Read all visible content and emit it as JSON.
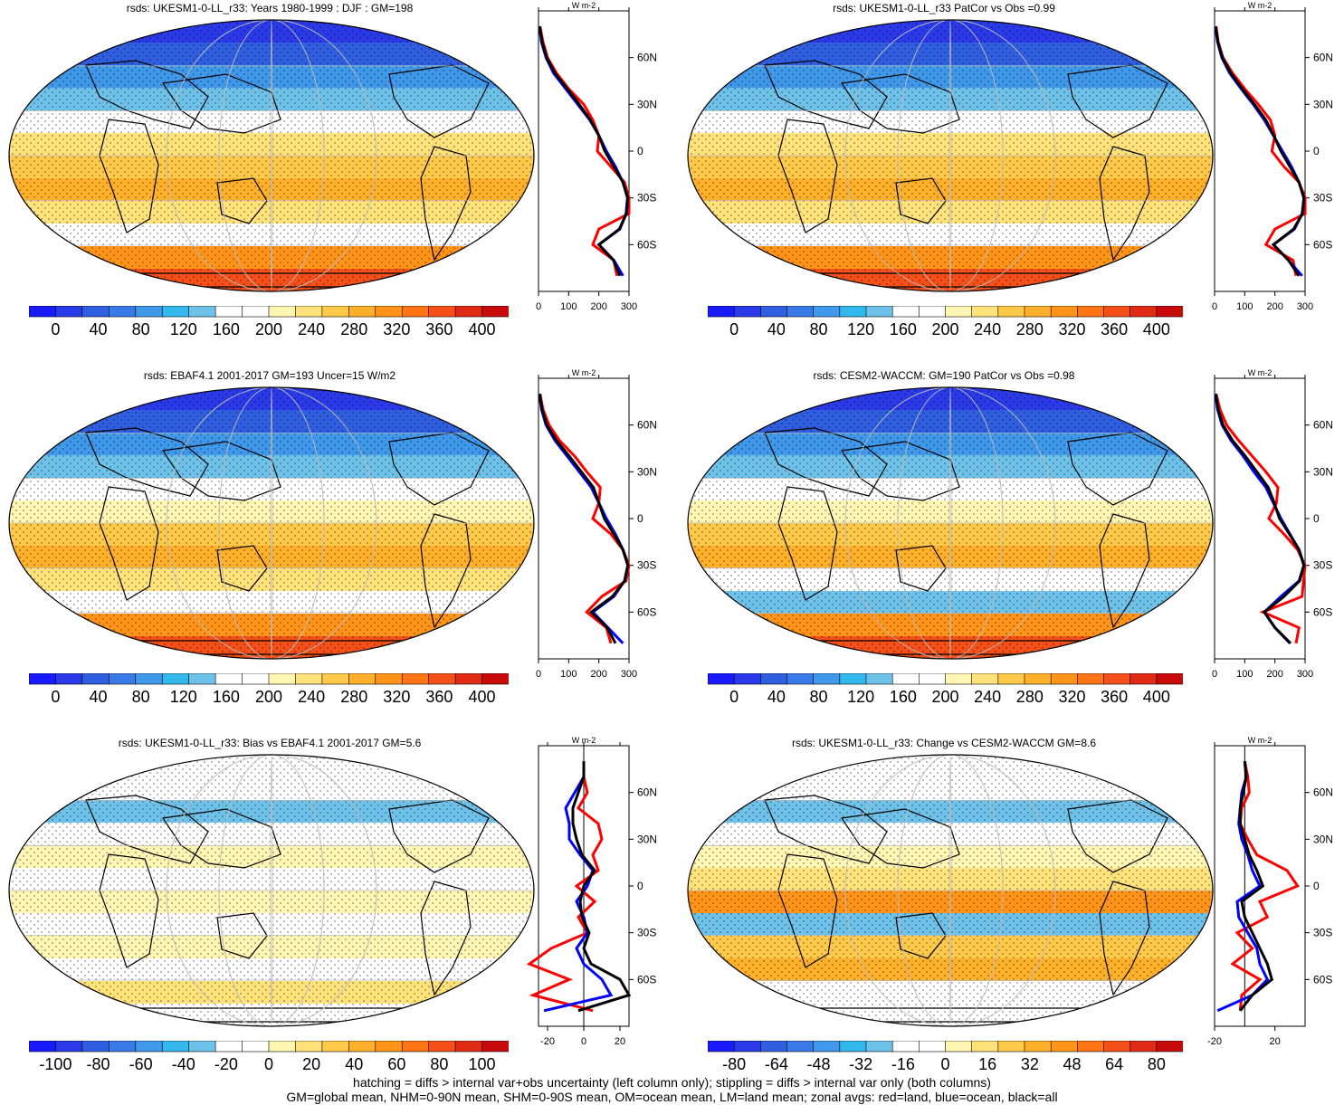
{
  "colors": {
    "abs_scale": [
      "#1a1aff",
      "#2a3ae8",
      "#2f5fe0",
      "#3a7ae8",
      "#3f98ea",
      "#32b8ec",
      "#6ec2ea",
      "#ffffff",
      "#ffffff",
      "#fff6b4",
      "#ffe27a",
      "#ffc94a",
      "#ffb02a",
      "#ff9418",
      "#ff7514",
      "#f5501a",
      "#e02a14",
      "#c80a0a"
    ],
    "land": "#ff0000",
    "ocean": "#0000ff",
    "all": "#000000"
  },
  "footer": {
    "line1": "hatching = diffs > internal var+obs uncertainty (left column only); stippling = diffs > internal var only (both columns)",
    "line2": "GM=global mean, NHM=0-90N mean, SHM=0-90S mean, OM=ocean mean, LM=land mean; zonal avgs: red=land, blue=ocean, black=all"
  },
  "chart_data": [
    {
      "type": "heatmap",
      "title": "rsds: UKESM1-0-LL_r33: Years 1980-1999 : DJF : GM=198",
      "colorbar_ticks": [
        "0",
        "40",
        "80",
        "120",
        "160",
        "200",
        "240",
        "280",
        "320",
        "360",
        "400"
      ],
      "profile": {
        "unit": "W m-2",
        "xlim": [
          0,
          300
        ],
        "xticks": [
          "0",
          "100",
          "200",
          "300"
        ],
        "yticks": [
          "60N",
          "30N",
          "0",
          "30S",
          "60S"
        ],
        "lat": [
          80,
          70,
          60,
          50,
          40,
          30,
          20,
          10,
          0,
          -10,
          -20,
          -30,
          -40,
          -50,
          -60,
          -70,
          -80
        ],
        "land": [
          5,
          15,
          30,
          60,
          100,
          150,
          180,
          200,
          195,
          240,
          285,
          300,
          300,
          200,
          180,
          250,
          260
        ],
        "ocean": [
          3,
          10,
          25,
          50,
          90,
          130,
          170,
          200,
          225,
          255,
          280,
          295,
          290,
          270,
          200,
          250,
          280
        ],
        "all": [
          4,
          12,
          27,
          55,
          95,
          135,
          172,
          200,
          220,
          250,
          280,
          296,
          292,
          268,
          200,
          248,
          270
        ]
      }
    },
    {
      "type": "heatmap",
      "title": "rsds: UKESM1-0-LL_r33 PatCor vs Obs =0.99",
      "colorbar_ticks": [
        "0",
        "40",
        "80",
        "120",
        "160",
        "200",
        "240",
        "280",
        "320",
        "360",
        "400"
      ],
      "profile": {
        "unit": "W m-2",
        "xlim": [
          0,
          300
        ],
        "xticks": [
          "0",
          "100",
          "200",
          "300"
        ],
        "yticks": [
          "60N",
          "30N",
          "0",
          "30S",
          "60S"
        ],
        "lat": [
          80,
          70,
          60,
          50,
          40,
          30,
          20,
          10,
          0,
          -10,
          -20,
          -30,
          -40,
          -50,
          -60,
          -70,
          -80
        ],
        "land": [
          5,
          12,
          28,
          60,
          100,
          145,
          185,
          200,
          190,
          230,
          280,
          300,
          300,
          200,
          170,
          260,
          270
        ],
        "ocean": [
          3,
          10,
          24,
          50,
          88,
          128,
          165,
          195,
          225,
          255,
          280,
          296,
          290,
          265,
          195,
          245,
          290
        ],
        "all": [
          4,
          11,
          26,
          54,
          92,
          132,
          170,
          196,
          220,
          250,
          280,
          296,
          292,
          262,
          195,
          245,
          280
        ]
      }
    },
    {
      "type": "heatmap",
      "title": "rsds: EBAF4.1 2001-2017 GM=193 Uncer=15 W/m2",
      "colorbar_ticks": [
        "0",
        "40",
        "80",
        "120",
        "160",
        "200",
        "240",
        "280",
        "320",
        "360",
        "400"
      ],
      "profile": {
        "unit": "W m-2",
        "xlim": [
          0,
          300
        ],
        "xticks": [
          "0",
          "100",
          "200",
          "300"
        ],
        "yticks": [
          "60N",
          "30N",
          "0",
          "30S",
          "60S"
        ],
        "lat": [
          80,
          70,
          60,
          50,
          40,
          30,
          20,
          10,
          0,
          -10,
          -20,
          -30,
          -40,
          -50,
          -60,
          -70,
          -80
        ],
        "land": [
          5,
          15,
          35,
          70,
          120,
          160,
          205,
          200,
          180,
          240,
          280,
          300,
          290,
          210,
          160,
          225,
          240
        ],
        "ocean": [
          3,
          10,
          25,
          55,
          95,
          135,
          175,
          200,
          225,
          255,
          280,
          296,
          285,
          250,
          180,
          230,
          280
        ],
        "all": [
          4,
          12,
          28,
          60,
          102,
          142,
          182,
          200,
          218,
          250,
          280,
          296,
          286,
          245,
          175,
          228,
          255
        ]
      }
    },
    {
      "type": "heatmap",
      "title": "rsds: CESM2-WACCM: GM=190 PatCor vs Obs =0.98",
      "colorbar_ticks": [
        "0",
        "40",
        "80",
        "120",
        "160",
        "200",
        "240",
        "280",
        "320",
        "360",
        "400"
      ],
      "profile": {
        "unit": "W m-2",
        "xlim": [
          0,
          300
        ],
        "xticks": [
          "0",
          "100",
          "200",
          "300"
        ],
        "yticks": [
          "60N",
          "30N",
          "0",
          "30S",
          "60S"
        ],
        "lat": [
          80,
          70,
          60,
          50,
          40,
          30,
          20,
          10,
          0,
          -10,
          -20,
          -30,
          -40,
          -50,
          -60,
          -70,
          -80
        ],
        "land": [
          5,
          18,
          40,
          80,
          125,
          170,
          210,
          205,
          180,
          230,
          275,
          300,
          295,
          290,
          160,
          280,
          270
        ],
        "ocean": [
          3,
          10,
          25,
          55,
          95,
          130,
          170,
          195,
          220,
          250,
          280,
          296,
          280,
          220,
          165,
          200,
          250
        ],
        "all": [
          4,
          12,
          28,
          60,
          102,
          140,
          178,
          198,
          215,
          248,
          280,
          296,
          282,
          230,
          165,
          200,
          252
        ]
      }
    },
    {
      "type": "heatmap",
      "title": "rsds: UKESM1-0-LL_r33: Bias vs EBAF4.1 2001-2017 GM=5.6",
      "colorbar_ticks": [
        "-100",
        "-80",
        "-60",
        "-40",
        "-20",
        "0",
        "20",
        "40",
        "60",
        "80",
        "100"
      ],
      "profile": {
        "unit": "W m-2",
        "xlim": [
          -25,
          25
        ],
        "xticks": [
          "-20",
          "0",
          "20"
        ],
        "yticks": [
          "60N",
          "30N",
          "0",
          "30S",
          "60S"
        ],
        "lat": [
          80,
          70,
          60,
          50,
          40,
          30,
          20,
          10,
          0,
          -10,
          -20,
          -30,
          -40,
          -50,
          -60,
          -70,
          -80
        ],
        "land": [
          0,
          0,
          2,
          -3,
          8,
          10,
          5,
          8,
          -4,
          6,
          -3,
          2,
          -18,
          -30,
          -8,
          -28,
          5
        ],
        "ocean": [
          0,
          0,
          -5,
          -10,
          -8,
          -8,
          -2,
          5,
          2,
          -4,
          0,
          2,
          -4,
          0,
          10,
          15,
          -22
        ],
        "all": [
          0,
          0,
          -3,
          -6,
          -6,
          -4,
          -1,
          6,
          0,
          -2,
          -1,
          3,
          0,
          4,
          20,
          25,
          -3
        ]
      }
    },
    {
      "type": "heatmap",
      "title": "rsds: UKESM1-0-LL_r33: Change vs CESM2-WACCM GM=8.6",
      "colorbar_ticks": [
        "-80",
        "-64",
        "-48",
        "-32",
        "-16",
        "0",
        "16",
        "32",
        "48",
        "64",
        "80"
      ],
      "profile": {
        "unit": "W m-2",
        "xlim": [
          -20,
          40
        ],
        "xticks": [
          "-20",
          "20"
        ],
        "yticks": [
          "60N",
          "30N",
          "0",
          "30S",
          "60S"
        ],
        "lat": [
          80,
          70,
          60,
          50,
          40,
          30,
          20,
          10,
          0,
          -10,
          -20,
          -30,
          -40,
          -50,
          -60,
          -70,
          -80
        ],
        "land": [
          0,
          2,
          3,
          -2,
          -3,
          2,
          8,
          28,
          35,
          10,
          15,
          -5,
          5,
          -8,
          10,
          -2,
          -3
        ],
        "ocean": [
          0,
          1,
          -2,
          -3,
          -4,
          -2,
          2,
          5,
          10,
          -5,
          -4,
          2,
          8,
          10,
          15,
          5,
          -18
        ],
        "all": [
          0,
          1,
          -1,
          -3,
          -3,
          0,
          3,
          8,
          12,
          -2,
          0,
          5,
          10,
          15,
          18,
          5,
          -3
        ]
      }
    }
  ]
}
